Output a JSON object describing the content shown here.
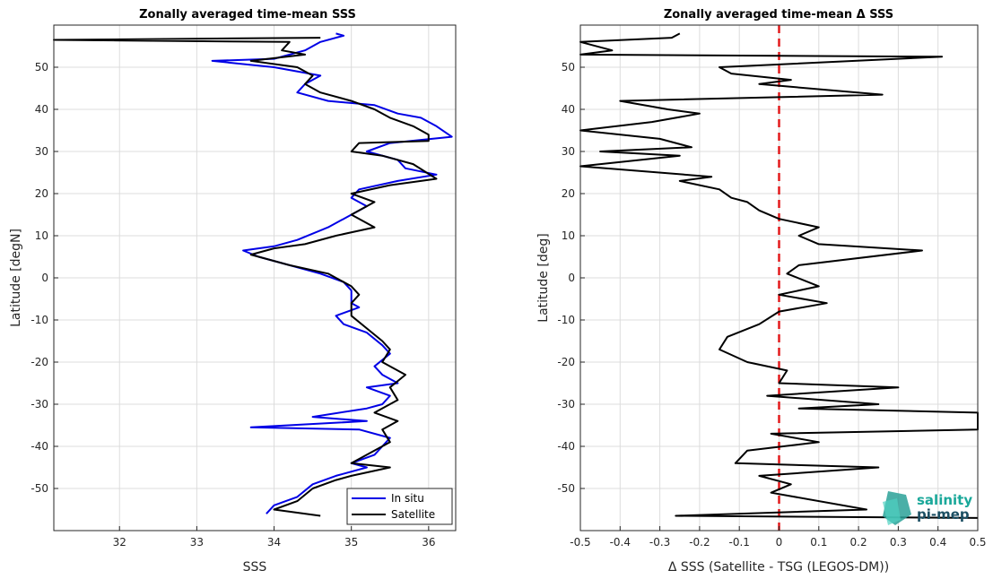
{
  "chart_data": [
    {
      "type": "line",
      "title": "Zonally averaged time-mean SSS",
      "xlabel": "SSS",
      "ylabel": "Latitude [degN]",
      "xlim": [
        31.15,
        36.35
      ],
      "ylim": [
        -60,
        60
      ],
      "xticks": [
        "32",
        "33",
        "34",
        "35",
        "36"
      ],
      "yticks": [
        "50",
        "40",
        "30",
        "20",
        "10",
        "0",
        "-10",
        "-20",
        "-30",
        "-40",
        "-50"
      ],
      "grid": true,
      "legend_position": "bottom-right",
      "series": [
        {
          "name": "In situ",
          "color": "#0000e6",
          "points": [
            [
              34.8,
              58
            ],
            [
              34.9,
              57.5
            ],
            [
              34.6,
              56
            ],
            [
              34.4,
              54
            ],
            [
              34.0,
              52
            ],
            [
              33.2,
              51.5
            ],
            [
              34.0,
              50
            ],
            [
              34.6,
              48
            ],
            [
              34.4,
              46
            ],
            [
              34.3,
              44
            ],
            [
              34.7,
              42
            ],
            [
              35.3,
              41
            ],
            [
              35.6,
              39
            ],
            [
              35.9,
              38
            ],
            [
              36.1,
              36
            ],
            [
              36.3,
              33.5
            ],
            [
              35.5,
              32
            ],
            [
              35.2,
              30
            ],
            [
              35.6,
              28
            ],
            [
              35.7,
              26
            ],
            [
              36.1,
              24.5
            ],
            [
              35.6,
              23
            ],
            [
              35.1,
              21
            ],
            [
              35.0,
              19
            ],
            [
              35.2,
              17
            ],
            [
              34.9,
              14
            ],
            [
              34.7,
              12
            ],
            [
              34.3,
              9
            ],
            [
              34.0,
              7.5
            ],
            [
              33.6,
              6.5
            ],
            [
              33.8,
              5
            ],
            [
              34.2,
              3
            ],
            [
              34.6,
              1
            ],
            [
              34.9,
              -1
            ],
            [
              35.0,
              -3
            ],
            [
              35.0,
              -6
            ],
            [
              35.1,
              -7
            ],
            [
              34.8,
              -9
            ],
            [
              34.9,
              -11
            ],
            [
              35.2,
              -13
            ],
            [
              35.4,
              -16
            ],
            [
              35.5,
              -18
            ],
            [
              35.3,
              -21
            ],
            [
              35.4,
              -23
            ],
            [
              35.6,
              -25
            ],
            [
              35.2,
              -26
            ],
            [
              35.5,
              -28
            ],
            [
              35.4,
              -30
            ],
            [
              35.2,
              -31
            ],
            [
              34.5,
              -33
            ],
            [
              35.2,
              -34
            ],
            [
              33.7,
              -35.5
            ],
            [
              35.1,
              -36
            ],
            [
              35.5,
              -38
            ],
            [
              35.4,
              -40
            ],
            [
              35.3,
              -42
            ],
            [
              35.0,
              -44
            ],
            [
              35.2,
              -45
            ],
            [
              34.8,
              -47
            ],
            [
              34.5,
              -49
            ],
            [
              34.3,
              -52
            ],
            [
              34.0,
              -54
            ],
            [
              33.9,
              -56
            ]
          ]
        },
        {
          "name": "Satellite",
          "color": "#000000",
          "points": [
            [
              34.6,
              57
            ],
            [
              31.15,
              56.5
            ],
            [
              34.2,
              56
            ],
            [
              34.1,
              54
            ],
            [
              34.4,
              53
            ],
            [
              33.7,
              51.5
            ],
            [
              34.3,
              50
            ],
            [
              34.5,
              48
            ],
            [
              34.4,
              46
            ],
            [
              34.6,
              44
            ],
            [
              35.0,
              42
            ],
            [
              35.3,
              40
            ],
            [
              35.5,
              38
            ],
            [
              35.8,
              36
            ],
            [
              36.0,
              34
            ],
            [
              36.0,
              32.5
            ],
            [
              35.1,
              32
            ],
            [
              35.0,
              30
            ],
            [
              35.4,
              29
            ],
            [
              35.8,
              27
            ],
            [
              36.1,
              23.5
            ],
            [
              35.5,
              22
            ],
            [
              35.0,
              20
            ],
            [
              35.3,
              18
            ],
            [
              35.0,
              15
            ],
            [
              35.3,
              12
            ],
            [
              34.8,
              10
            ],
            [
              34.4,
              8
            ],
            [
              34.0,
              7
            ],
            [
              33.7,
              5.5
            ],
            [
              34.2,
              3
            ],
            [
              34.7,
              1
            ],
            [
              35.0,
              -2
            ],
            [
              35.1,
              -4
            ],
            [
              35.0,
              -6
            ],
            [
              35.0,
              -9
            ],
            [
              35.2,
              -12
            ],
            [
              35.4,
              -15
            ],
            [
              35.5,
              -17
            ],
            [
              35.4,
              -20
            ],
            [
              35.7,
              -23
            ],
            [
              35.5,
              -26
            ],
            [
              35.6,
              -29
            ],
            [
              35.3,
              -32
            ],
            [
              35.6,
              -34
            ],
            [
              35.4,
              -36
            ],
            [
              35.5,
              -39
            ],
            [
              35.2,
              -42
            ],
            [
              35.0,
              -44
            ],
            [
              35.5,
              -45
            ],
            [
              35.0,
              -47
            ],
            [
              34.8,
              -48
            ],
            [
              34.5,
              -50
            ],
            [
              34.3,
              -53
            ],
            [
              34.0,
              -55
            ],
            [
              34.6,
              -56.5
            ]
          ]
        }
      ]
    },
    {
      "type": "line",
      "title": "Zonally averaged time-mean Δ SSS",
      "xlabel": "Δ SSS (Satellite - TSG (LEGOS-DM))",
      "ylabel": "Latitude [deg]",
      "xlim": [
        -0.5,
        0.5
      ],
      "ylim": [
        -60,
        60
      ],
      "xticks": [
        "-0.5",
        "-0.4",
        "-0.3",
        "-0.2",
        "-0.1",
        "0",
        "0.1",
        "0.2",
        "0.3",
        "0.4",
        "0.5"
      ],
      "yticks": [
        "50",
        "40",
        "30",
        "20",
        "10",
        "0",
        "-10",
        "-20",
        "-30",
        "-40",
        "-50"
      ],
      "grid": true,
      "reference_line": {
        "x": 0,
        "color": "#e31a1c",
        "style": "dashed"
      },
      "series": [
        {
          "name": "",
          "color": "#000000",
          "points": [
            [
              -0.25,
              58
            ],
            [
              -0.27,
              57
            ],
            [
              -0.5,
              56
            ],
            [
              -0.42,
              54
            ],
            [
              -0.5,
              53
            ],
            [
              0.41,
              52.5
            ],
            [
              -0.15,
              50
            ],
            [
              -0.12,
              48.5
            ],
            [
              0.03,
              47
            ],
            [
              -0.05,
              46
            ],
            [
              0.26,
              43.5
            ],
            [
              -0.4,
              42
            ],
            [
              -0.28,
              40
            ],
            [
              -0.2,
              39
            ],
            [
              -0.32,
              37
            ],
            [
              -0.5,
              35
            ],
            [
              -0.3,
              33
            ],
            [
              -0.22,
              31
            ],
            [
              -0.45,
              30
            ],
            [
              -0.25,
              29
            ],
            [
              -0.5,
              26.5
            ],
            [
              -0.17,
              24
            ],
            [
              -0.25,
              23
            ],
            [
              -0.15,
              21
            ],
            [
              -0.12,
              19
            ],
            [
              -0.08,
              18
            ],
            [
              -0.05,
              16
            ],
            [
              0.0,
              14
            ],
            [
              0.1,
              12
            ],
            [
              0.05,
              10
            ],
            [
              0.1,
              8
            ],
            [
              0.36,
              6.5
            ],
            [
              0.05,
              3
            ],
            [
              0.02,
              1
            ],
            [
              0.1,
              -2
            ],
            [
              0.0,
              -4
            ],
            [
              0.12,
              -6
            ],
            [
              0.0,
              -8
            ],
            [
              -0.05,
              -11
            ],
            [
              -0.13,
              -14
            ],
            [
              -0.15,
              -17
            ],
            [
              -0.08,
              -20
            ],
            [
              0.02,
              -22
            ],
            [
              0.0,
              -25
            ],
            [
              0.3,
              -26
            ],
            [
              -0.03,
              -28
            ],
            [
              0.25,
              -30
            ],
            [
              0.05,
              -31
            ],
            [
              0.5,
              -32
            ],
            [
              0.5,
              -35
            ],
            [
              0.5,
              -36
            ],
            [
              -0.02,
              -37
            ],
            [
              0.1,
              -39
            ],
            [
              -0.08,
              -41
            ],
            [
              -0.11,
              -44
            ],
            [
              0.25,
              -45
            ],
            [
              -0.05,
              -47
            ],
            [
              0.03,
              -49
            ],
            [
              -0.02,
              -51
            ],
            [
              0.22,
              -55
            ],
            [
              -0.26,
              -56.5
            ],
            [
              0.5,
              -57
            ]
          ]
        }
      ]
    }
  ],
  "legend": {
    "items": [
      "In situ",
      "Satellite"
    ]
  },
  "logo": {
    "line1": "salinity",
    "line2": "pi-mep"
  }
}
